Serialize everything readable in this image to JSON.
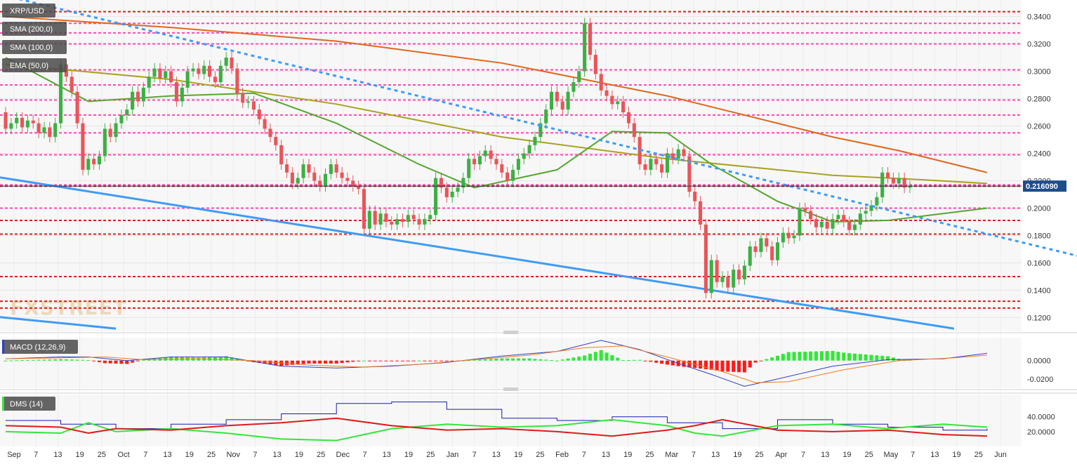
{
  "chart_data": {
    "type": "line",
    "symbol": "XRP/USD",
    "indicators": [
      "SMA (200,0)",
      "SMA (100,0)",
      "EMA (50,0)"
    ],
    "last_price": "0.216090",
    "watermark": "FXSTREET",
    "price_axis": {
      "ylim": [
        0.11,
        0.35
      ],
      "ticks": [
        "0.3400",
        "0.3200",
        "0.3000",
        "0.2800",
        "0.2600",
        "0.2400",
        "0.2200",
        "0.2000",
        "0.1800",
        "0.1600",
        "0.1400",
        "0.1200"
      ],
      "tick_values": [
        0.34,
        0.32,
        0.3,
        0.28,
        0.26,
        0.24,
        0.22,
        0.2,
        0.18,
        0.16,
        0.14,
        0.12
      ]
    },
    "x_ticks": [
      "Sep",
      "7",
      "13",
      "19",
      "25",
      "Oct",
      "7",
      "13",
      "19",
      "25",
      "Nov",
      "7",
      "13",
      "19",
      "25",
      "Dec",
      "7",
      "13",
      "19",
      "25",
      "Jan",
      "7",
      "13",
      "19",
      "25",
      "Feb",
      "7",
      "13",
      "19",
      "25",
      "Mar",
      "7",
      "13",
      "19",
      "25",
      "Apr",
      "7",
      "13",
      "19",
      "25",
      "May",
      "7",
      "13",
      "19",
      "25",
      "Jun"
    ],
    "levels": {
      "red_dashed": [
        0.3435,
        0.216,
        0.191,
        0.181,
        0.15,
        0.132,
        0.127
      ],
      "magenta_dashed": [
        0.335,
        0.328,
        0.32,
        0.301,
        0.29,
        0.279,
        0.268,
        0.255,
        0.239,
        0.217,
        0.2
      ]
    },
    "candles": [
      [
        0.27,
        0.258
      ],
      [
        0.258,
        0.262
      ],
      [
        0.262,
        0.266
      ],
      [
        0.266,
        0.259
      ],
      [
        0.259,
        0.264
      ],
      [
        0.264,
        0.262
      ],
      [
        0.262,
        0.255
      ],
      [
        0.255,
        0.259
      ],
      [
        0.259,
        0.252
      ],
      [
        0.252,
        0.262
      ],
      [
        0.262,
        0.305
      ],
      [
        0.305,
        0.296
      ],
      [
        0.296,
        0.285
      ],
      [
        0.285,
        0.262
      ],
      [
        0.262,
        0.228
      ],
      [
        0.228,
        0.236
      ],
      [
        0.236,
        0.232
      ],
      [
        0.232,
        0.238
      ],
      [
        0.238,
        0.258
      ],
      [
        0.258,
        0.252
      ],
      [
        0.252,
        0.262
      ],
      [
        0.262,
        0.268
      ],
      [
        0.268,
        0.272
      ],
      [
        0.272,
        0.285
      ],
      [
        0.285,
        0.278
      ],
      [
        0.278,
        0.288
      ],
      [
        0.288,
        0.296
      ],
      [
        0.296,
        0.302
      ],
      [
        0.302,
        0.295
      ],
      [
        0.295,
        0.3
      ],
      [
        0.3,
        0.292
      ],
      [
        0.292,
        0.278
      ],
      [
        0.278,
        0.288
      ],
      [
        0.288,
        0.3
      ],
      [
        0.3,
        0.302
      ],
      [
        0.302,
        0.298
      ],
      [
        0.298,
        0.304
      ],
      [
        0.304,
        0.296
      ],
      [
        0.296,
        0.292
      ],
      [
        0.292,
        0.304
      ],
      [
        0.304,
        0.31
      ],
      [
        0.31,
        0.302
      ],
      [
        0.302,
        0.284
      ],
      [
        0.284,
        0.277
      ],
      [
        0.277,
        0.278
      ],
      [
        0.278,
        0.272
      ],
      [
        0.272,
        0.265
      ],
      [
        0.265,
        0.258
      ],
      [
        0.258,
        0.252
      ],
      [
        0.252,
        0.246
      ],
      [
        0.246,
        0.232
      ],
      [
        0.232,
        0.226
      ],
      [
        0.226,
        0.218
      ],
      [
        0.218,
        0.222
      ],
      [
        0.222,
        0.232
      ],
      [
        0.232,
        0.226
      ],
      [
        0.226,
        0.22
      ],
      [
        0.22,
        0.216
      ],
      [
        0.216,
        0.225
      ],
      [
        0.225,
        0.232
      ],
      [
        0.232,
        0.226
      ],
      [
        0.226,
        0.222
      ],
      [
        0.222,
        0.22
      ],
      [
        0.22,
        0.216
      ],
      [
        0.216,
        0.214
      ],
      [
        0.214,
        0.185
      ],
      [
        0.185,
        0.198
      ],
      [
        0.198,
        0.188
      ],
      [
        0.188,
        0.196
      ],
      [
        0.196,
        0.19
      ],
      [
        0.19,
        0.188
      ],
      [
        0.188,
        0.192
      ],
      [
        0.192,
        0.19
      ],
      [
        0.19,
        0.195
      ],
      [
        0.195,
        0.192
      ],
      [
        0.192,
        0.188
      ],
      [
        0.188,
        0.192
      ],
      [
        0.192,
        0.195
      ],
      [
        0.195,
        0.222
      ],
      [
        0.222,
        0.215
      ],
      [
        0.215,
        0.208
      ],
      [
        0.208,
        0.212
      ],
      [
        0.212,
        0.215
      ],
      [
        0.215,
        0.222
      ],
      [
        0.222,
        0.236
      ],
      [
        0.236,
        0.232
      ],
      [
        0.232,
        0.238
      ],
      [
        0.238,
        0.242
      ],
      [
        0.242,
        0.236
      ],
      [
        0.236,
        0.232
      ],
      [
        0.232,
        0.226
      ],
      [
        0.226,
        0.22
      ],
      [
        0.22,
        0.228
      ],
      [
        0.228,
        0.236
      ],
      [
        0.236,
        0.24
      ],
      [
        0.24,
        0.246
      ],
      [
        0.246,
        0.252
      ],
      [
        0.252,
        0.262
      ],
      [
        0.262,
        0.272
      ],
      [
        0.272,
        0.285
      ],
      [
        0.285,
        0.278
      ],
      [
        0.278,
        0.272
      ],
      [
        0.272,
        0.285
      ],
      [
        0.285,
        0.292
      ],
      [
        0.292,
        0.3
      ],
      [
        0.3,
        0.335
      ],
      [
        0.335,
        0.312
      ],
      [
        0.312,
        0.298
      ],
      [
        0.298,
        0.286
      ],
      [
        0.286,
        0.282
      ],
      [
        0.282,
        0.276
      ],
      [
        0.276,
        0.278
      ],
      [
        0.278,
        0.27
      ],
      [
        0.27,
        0.262
      ],
      [
        0.262,
        0.252
      ],
      [
        0.252,
        0.232
      ],
      [
        0.232,
        0.228
      ],
      [
        0.228,
        0.236
      ],
      [
        0.236,
        0.232
      ],
      [
        0.232,
        0.226
      ],
      [
        0.226,
        0.24
      ],
      [
        0.24,
        0.236
      ],
      [
        0.236,
        0.243
      ],
      [
        0.243,
        0.238
      ],
      [
        0.238,
        0.212
      ],
      [
        0.212,
        0.205
      ],
      [
        0.205,
        0.188
      ],
      [
        0.188,
        0.138
      ],
      [
        0.138,
        0.162
      ],
      [
        0.162,
        0.146
      ],
      [
        0.146,
        0.15
      ],
      [
        0.15,
        0.142
      ],
      [
        0.142,
        0.155
      ],
      [
        0.155,
        0.148
      ],
      [
        0.148,
        0.158
      ],
      [
        0.158,
        0.172
      ],
      [
        0.172,
        0.168
      ],
      [
        0.168,
        0.178
      ],
      [
        0.178,
        0.172
      ],
      [
        0.172,
        0.162
      ],
      [
        0.162,
        0.175
      ],
      [
        0.175,
        0.182
      ],
      [
        0.182,
        0.178
      ],
      [
        0.178,
        0.18
      ],
      [
        0.18,
        0.2
      ],
      [
        0.2,
        0.198
      ],
      [
        0.198,
        0.192
      ],
      [
        0.192,
        0.186
      ],
      [
        0.186,
        0.19
      ],
      [
        0.19,
        0.185
      ],
      [
        0.185,
        0.192
      ],
      [
        0.192,
        0.195
      ],
      [
        0.195,
        0.19
      ],
      [
        0.19,
        0.184
      ],
      [
        0.184,
        0.188
      ],
      [
        0.188,
        0.196
      ],
      [
        0.196,
        0.198
      ],
      [
        0.198,
        0.202
      ],
      [
        0.202,
        0.208
      ],
      [
        0.208,
        0.226
      ],
      [
        0.226,
        0.222
      ],
      [
        0.222,
        0.218
      ],
      [
        0.218,
        0.222
      ],
      [
        0.222,
        0.215
      ],
      [
        0.215,
        0.216
      ]
    ],
    "sma200": [
      [
        0,
        0.34
      ],
      [
        30,
        0.332
      ],
      [
        60,
        0.322
      ],
      [
        90,
        0.306
      ],
      [
        120,
        0.282
      ],
      [
        150,
        0.252
      ],
      [
        162,
        0.242
      ],
      [
        178,
        0.226
      ]
    ],
    "sma100": [
      [
        0,
        0.305
      ],
      [
        30,
        0.294
      ],
      [
        60,
        0.276
      ],
      [
        90,
        0.252
      ],
      [
        120,
        0.236
      ],
      [
        150,
        0.224
      ],
      [
        165,
        0.221
      ],
      [
        178,
        0.218
      ]
    ],
    "ema50": [
      [
        0,
        0.31
      ],
      [
        15,
        0.278
      ],
      [
        30,
        0.282
      ],
      [
        45,
        0.284
      ],
      [
        60,
        0.262
      ],
      [
        75,
        0.232
      ],
      [
        85,
        0.215
      ],
      [
        100,
        0.228
      ],
      [
        110,
        0.256
      ],
      [
        120,
        0.255
      ],
      [
        128,
        0.232
      ],
      [
        140,
        0.205
      ],
      [
        150,
        0.19
      ],
      [
        160,
        0.191
      ],
      [
        170,
        0.196
      ],
      [
        178,
        0.2
      ]
    ],
    "macd": {
      "label": "MACD (12,26,9)",
      "ylim": [
        -0.03,
        0.025
      ],
      "ticks": [
        "0.0000",
        "-0.0200"
      ],
      "tick_values": [
        0.0,
        -0.02
      ],
      "macd_line": [
        [
          0,
          0.002
        ],
        [
          10,
          0.004
        ],
        [
          15,
          0.004
        ],
        [
          22,
          0.0
        ],
        [
          30,
          0.004
        ],
        [
          40,
          0.004
        ],
        [
          50,
          -0.006
        ],
        [
          60,
          -0.008
        ],
        [
          70,
          -0.006
        ],
        [
          80,
          -0.002
        ],
        [
          90,
          0.005
        ],
        [
          100,
          0.01
        ],
        [
          108,
          0.022
        ],
        [
          115,
          0.012
        ],
        [
          122,
          -0.003
        ],
        [
          128,
          -0.015
        ],
        [
          134,
          -0.028
        ],
        [
          140,
          -0.02
        ],
        [
          150,
          -0.006
        ],
        [
          160,
          0.001
        ],
        [
          170,
          0.002
        ],
        [
          178,
          0.008
        ]
      ],
      "signal_line": [
        [
          0,
          0.002
        ],
        [
          10,
          0.003
        ],
        [
          18,
          0.004
        ],
        [
          25,
          0.001
        ],
        [
          35,
          0.002
        ],
        [
          45,
          0.0
        ],
        [
          55,
          -0.005
        ],
        [
          65,
          -0.007
        ],
        [
          75,
          -0.004
        ],
        [
          85,
          0.001
        ],
        [
          95,
          0.006
        ],
        [
          105,
          0.014
        ],
        [
          112,
          0.016
        ],
        [
          120,
          0.004
        ],
        [
          130,
          -0.012
        ],
        [
          136,
          -0.024
        ],
        [
          142,
          -0.023
        ],
        [
          152,
          -0.01
        ],
        [
          162,
          0.0
        ],
        [
          172,
          0.003
        ],
        [
          178,
          0.006
        ]
      ]
    },
    "dms": {
      "label": "DMS (14)",
      "ylim": [
        0,
        70
      ],
      "ticks": [
        "40.0000",
        "20.0000"
      ],
      "tick_values": [
        40,
        20
      ],
      "adx": [
        [
          0,
          35
        ],
        [
          10,
          30
        ],
        [
          20,
          24
        ],
        [
          30,
          30
        ],
        [
          40,
          36
        ],
        [
          50,
          44
        ],
        [
          60,
          58
        ],
        [
          70,
          60
        ],
        [
          80,
          50
        ],
        [
          90,
          38
        ],
        [
          100,
          35
        ],
        [
          110,
          40
        ],
        [
          120,
          32
        ],
        [
          130,
          24
        ],
        [
          140,
          36
        ],
        [
          150,
          30
        ],
        [
          160,
          26
        ],
        [
          170,
          22
        ],
        [
          178,
          24
        ]
      ],
      "plus_di": [
        [
          0,
          20
        ],
        [
          10,
          18
        ],
        [
          15,
          32
        ],
        [
          20,
          20
        ],
        [
          30,
          24
        ],
        [
          40,
          18
        ],
        [
          50,
          10
        ],
        [
          60,
          8
        ],
        [
          70,
          24
        ],
        [
          80,
          30
        ],
        [
          90,
          26
        ],
        [
          100,
          28
        ],
        [
          110,
          36
        ],
        [
          120,
          28
        ],
        [
          125,
          18
        ],
        [
          130,
          14
        ],
        [
          140,
          28
        ],
        [
          150,
          30
        ],
        [
          160,
          24
        ],
        [
          170,
          30
        ],
        [
          178,
          26
        ]
      ],
      "minus_di": [
        [
          0,
          28
        ],
        [
          10,
          26
        ],
        [
          15,
          18
        ],
        [
          20,
          24
        ],
        [
          30,
          22
        ],
        [
          40,
          28
        ],
        [
          50,
          32
        ],
        [
          60,
          38
        ],
        [
          70,
          28
        ],
        [
          80,
          22
        ],
        [
          90,
          24
        ],
        [
          100,
          20
        ],
        [
          110,
          14
        ],
        [
          120,
          22
        ],
        [
          125,
          28
        ],
        [
          130,
          36
        ],
        [
          140,
          22
        ],
        [
          150,
          20
        ],
        [
          160,
          22
        ],
        [
          170,
          16
        ],
        [
          178,
          14
        ]
      ]
    },
    "trendlines": {
      "dotted_blue": [
        [
          -5,
          0.36
        ],
        [
          215,
          0.145
        ]
      ],
      "solid_blue_upper": [
        [
          -5,
          0.225
        ],
        [
          172,
          0.112
        ]
      ],
      "solid_blue_lower": [
        [
          -5,
          0.122
        ],
        [
          20,
          0.112
        ]
      ]
    },
    "colors": {
      "bull": "#3cb043",
      "bear": "#e8555a",
      "sma200": "#e0661b",
      "sma100": "#a8a21e",
      "ema50": "#55a630",
      "level_red": "#e31b1b",
      "level_magenta": "#ff47b5",
      "trend_blue": "#3d9bf5",
      "macd": "#2b3fd1",
      "signal": "#f07a20",
      "hist_pos": "#33e63a",
      "hist_neg": "#ff1a1a",
      "adx": "#1b1bb0",
      "plus_di": "#33e63a",
      "minus_di": "#e01a1a",
      "price_tag": "#1e4d8c"
    }
  }
}
